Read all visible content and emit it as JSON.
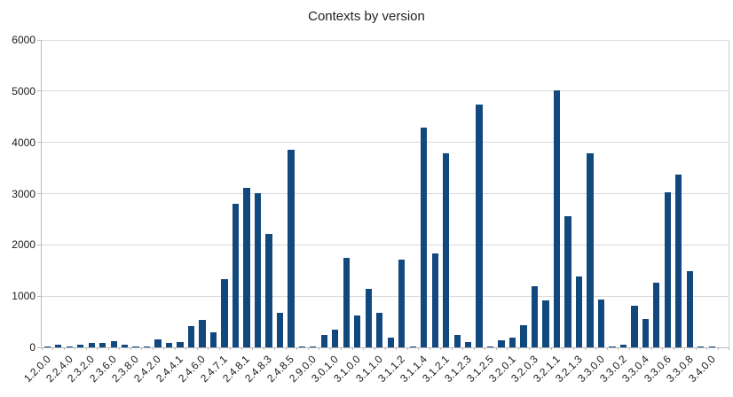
{
  "title": "Contexts by version",
  "chart_data": {
    "type": "bar",
    "title": "Contexts by version",
    "categories": [
      "1.2.0.0",
      "",
      "2.2.4.0",
      "",
      "2.3.2.0",
      "",
      "2.3.6.0",
      "",
      "2.3.8.0",
      "",
      "2.4.2.0",
      "",
      "2.4.4.1",
      "",
      "2.4.6.0",
      "",
      "2.4.7.1",
      "",
      "2.4.8.1",
      "",
      "2.4.8.3",
      "",
      "2.4.8.5",
      "",
      "2.9.0.0",
      "",
      "3.0.1.0",
      "",
      "3.1.0.0",
      "",
      "3.1.1.0",
      "",
      "3.1.1.2",
      "",
      "3.1.1.4",
      "",
      "3.1.2.1",
      "",
      "3.1.2.3",
      "",
      "3.1.2.5",
      "",
      "3.2.0.1",
      "",
      "3.2.0.3",
      "",
      "3.2.1.1",
      "",
      "3.2.1.3",
      "",
      "3.3.0.0",
      "",
      "3.3.0.2",
      "",
      "3.3.0.4",
      "",
      "3.3.0.6",
      "",
      "3.3.0.8",
      "",
      "3.4.0.0",
      ""
    ],
    "values": [
      20,
      55,
      10,
      45,
      80,
      90,
      125,
      45,
      10,
      10,
      160,
      85,
      110,
      415,
      530,
      290,
      1330,
      2800,
      3110,
      3010,
      2210,
      680,
      3850,
      15,
      15,
      240,
      340,
      1750,
      620,
      1140,
      680,
      195,
      1720,
      10,
      4290,
      1830,
      3780,
      240,
      105,
      4740,
      15,
      130,
      190,
      440,
      1190,
      920,
      5020,
      2560,
      1380,
      3780,
      930,
      10,
      60,
      810,
      560,
      1270,
      3020,
      3380,
      1480,
      15,
      15,
      0
    ],
    "xlabel": "",
    "ylabel": "",
    "ylim": [
      0,
      6000
    ],
    "yticks": [
      0,
      1000,
      2000,
      3000,
      4000,
      5000,
      6000
    ],
    "grid": true,
    "legend": "none",
    "bar_color": "#11497E",
    "gridline_color": "#d9d9d9",
    "text_color": "#1a1a1a"
  }
}
